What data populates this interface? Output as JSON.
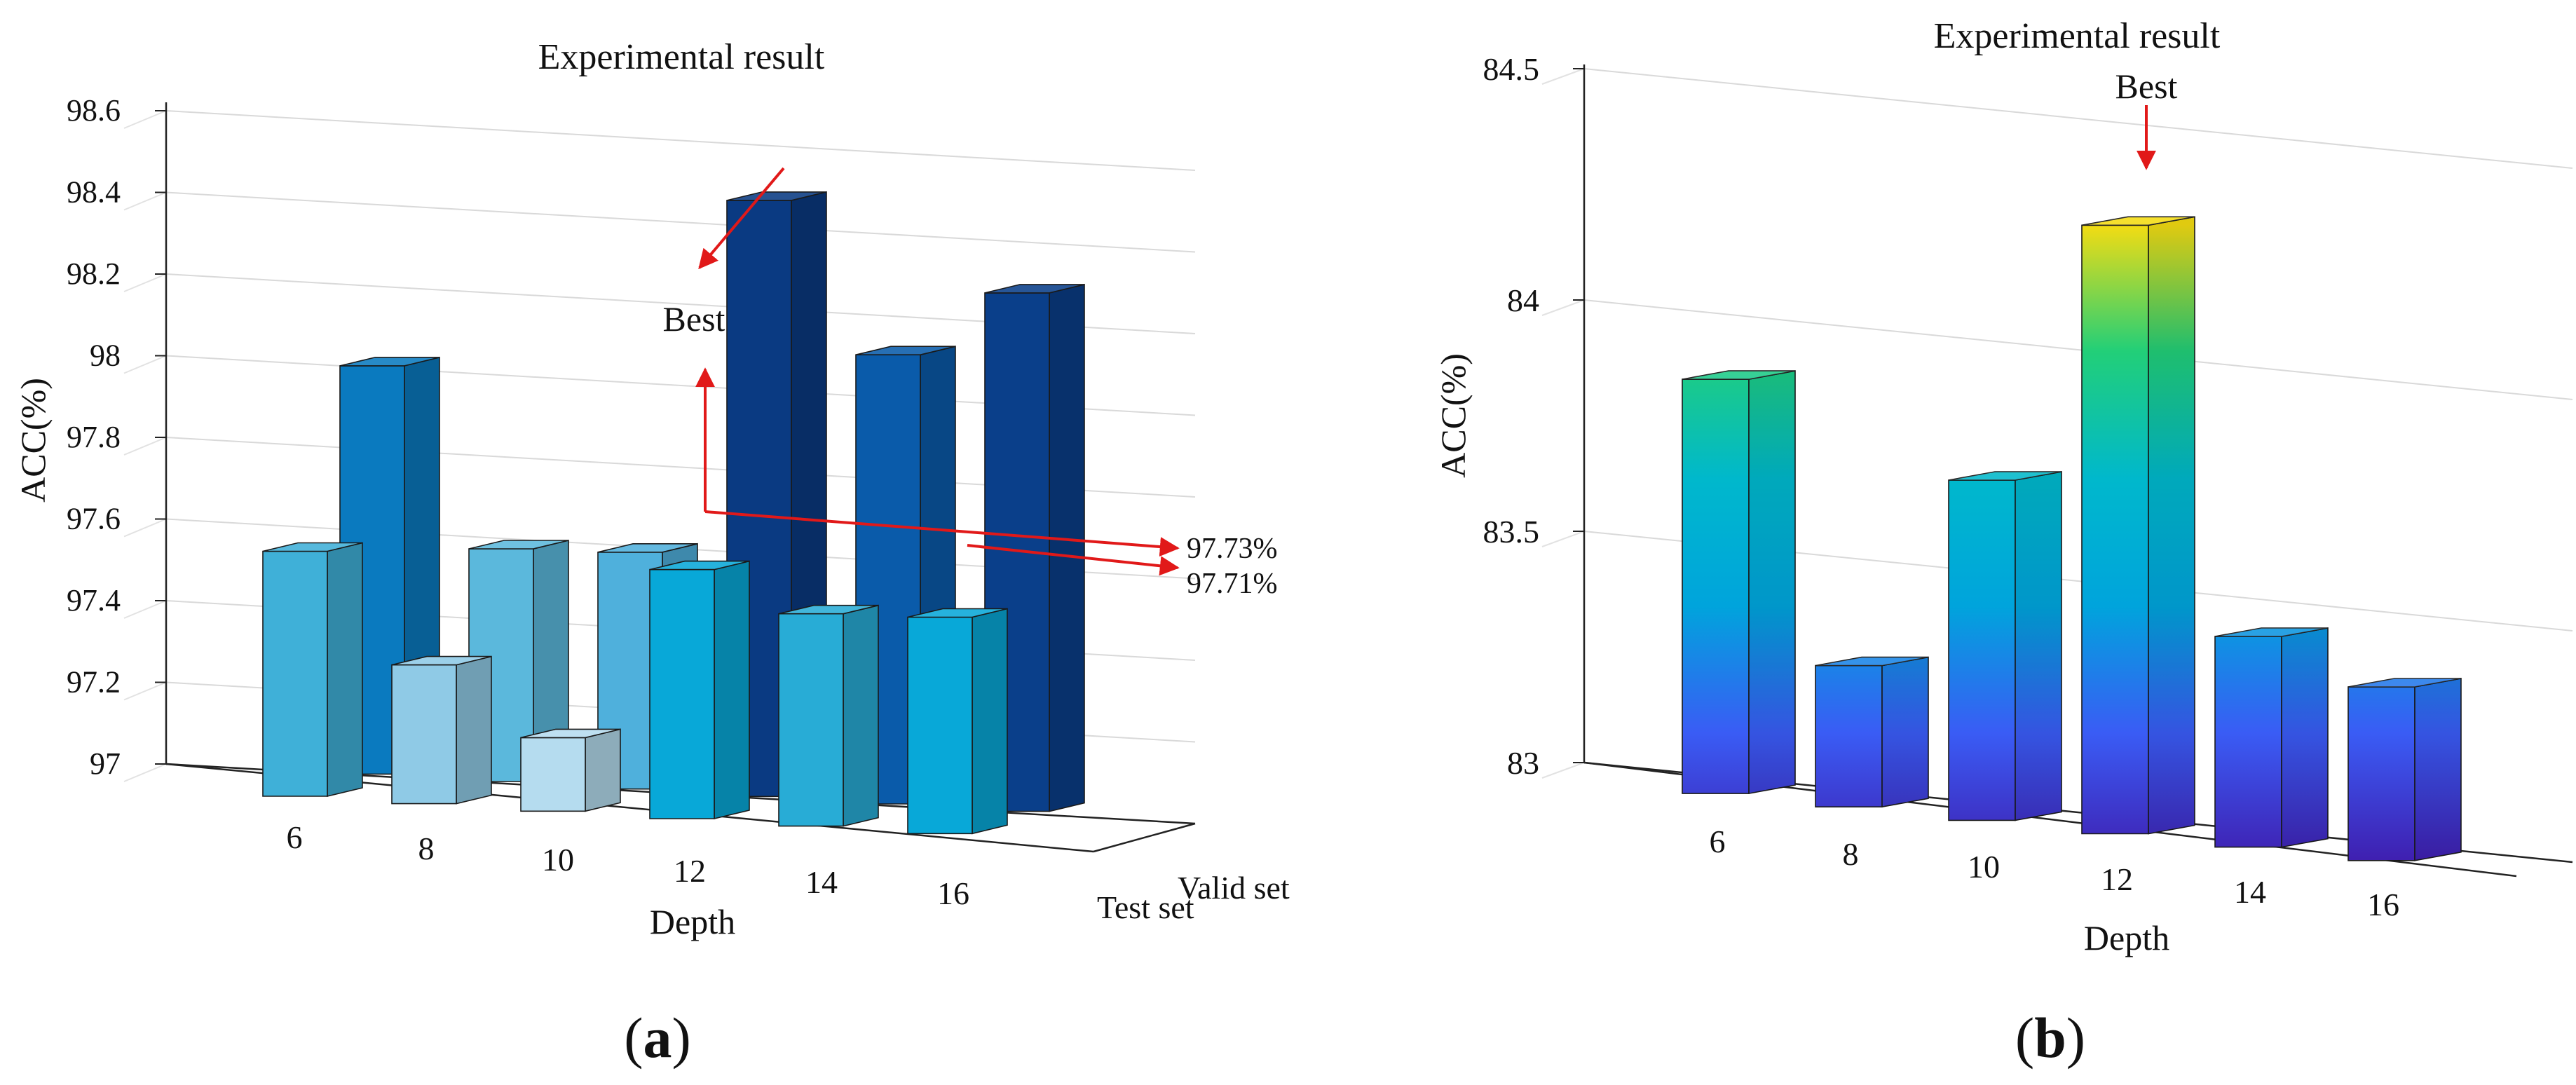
{
  "chart_data": [
    {
      "id": "a",
      "type": "bar",
      "subtype": "3d-grouped",
      "title": "Experimental result",
      "panel_label_open": "(",
      "panel_letter": "a",
      "panel_label_close": ")",
      "xlabel": "Depth",
      "ylabel": "ACC(%)",
      "ylim": [
        97,
        98.6
      ],
      "yticks": [
        97,
        97.2,
        97.4,
        97.6,
        97.8,
        98,
        98.2,
        98.4,
        98.6
      ],
      "yticklabels": [
        "97",
        "97.2",
        "97.4",
        "97.6",
        "97.8",
        "98",
        "98.2",
        "98.4",
        "98.6"
      ],
      "categories": [
        "6",
        "8",
        "10",
        "12",
        "14",
        "16"
      ],
      "series_axis_labels": [
        "Test set",
        "Valid set"
      ],
      "series": [
        {
          "name": "Valid set",
          "values": [
            98.0,
            97.57,
            97.58,
            98.46,
            98.1,
            98.27
          ],
          "colors": [
            "#0a7abf",
            "#5bb8dc",
            "#4fb0dc",
            "#0a3a82",
            "#0a5baa",
            "#0a3f8a"
          ]
        },
        {
          "name": "Test set",
          "values": [
            97.6,
            97.34,
            97.18,
            97.61,
            97.52,
            97.53
          ],
          "colors": [
            "#3fb0d8",
            "#8fcae6",
            "#b5dcef",
            "#08a8d8",
            "#28acd6",
            "#08a8d8"
          ]
        }
      ],
      "annotations": [
        {
          "text": "Best"
        },
        {
          "text": "97.73%"
        },
        {
          "text": "97.71%"
        }
      ]
    },
    {
      "id": "b",
      "type": "bar",
      "subtype": "3d",
      "title": "Experimental result",
      "panel_label_open": "(",
      "panel_letter": "b",
      "panel_label_close": ")",
      "xlabel": "Depth",
      "ylabel": "ACC(%)",
      "ylim": [
        83,
        84.5
      ],
      "yticks": [
        83,
        83.5,
        84,
        84.5
      ],
      "yticklabels": [
        "83",
        "83.5",
        "84",
        "84.5"
      ],
      "categories": [
        "6",
        "8",
        "10",
        "12",
        "14",
        "16"
      ],
      "series": [
        {
          "name": "ACC",
          "values": [
            83.85,
            83.26,
            83.69,
            84.27,
            83.41,
            83.33
          ]
        }
      ],
      "colormap": [
        "#3f1fb0",
        "#3a5cf5",
        "#00a4dc",
        "#00b8cc",
        "#22cf78",
        "#f4dc12",
        "#ffd800"
      ],
      "annotations": [
        {
          "text": "Best"
        }
      ]
    }
  ]
}
